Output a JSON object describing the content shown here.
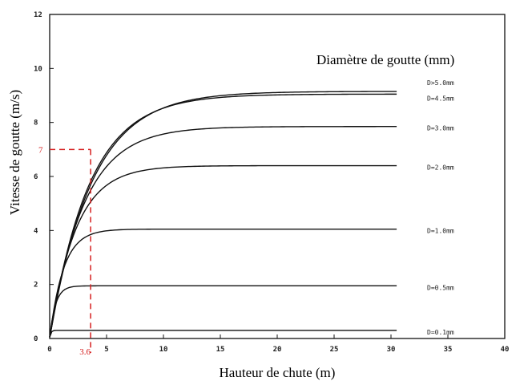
{
  "chart_data": {
    "type": "line",
    "title": "",
    "legend_title": "Diamètre de goutte (mm)",
    "xlabel": "Hauteur de chute (m)",
    "ylabel": "Vitesse de goutte (m/s)",
    "xlim": [
      0,
      40
    ],
    "ylim": [
      0,
      12
    ],
    "xticks": [
      0,
      5,
      10,
      15,
      20,
      25,
      30,
      35,
      40
    ],
    "yticks": [
      0,
      2,
      4,
      6,
      8,
      10,
      12
    ],
    "grid": false,
    "legend_position": "right",
    "series": [
      {
        "name": "D>5.0mm",
        "vmax": 9.15,
        "k": 3.7,
        "x_end": 30.5
      },
      {
        "name": "D=4.5mm",
        "vmax": 9.05,
        "k": 3.5,
        "x_end": 30.5
      },
      {
        "name": "D=3.0mm",
        "vmax": 7.85,
        "k": 3.0,
        "x_end": 30.5
      },
      {
        "name": "D=2.0mm",
        "vmax": 6.4,
        "k": 2.3,
        "x_end": 30.5
      },
      {
        "name": "D=1.0mm",
        "vmax": 4.05,
        "k": 1.2,
        "x_end": 30.5
      },
      {
        "name": "D=0.5mm",
        "vmax": 1.95,
        "k": 0.5,
        "x_end": 30.5
      },
      {
        "name": "D=0.1mm",
        "vmax": 0.3,
        "k": 0.1,
        "x_end": 30.5
      }
    ],
    "annotation": {
      "x": 3.6,
      "y": 7.0,
      "x_label": "3.6",
      "y_label": "7",
      "color": "#d62020"
    }
  }
}
